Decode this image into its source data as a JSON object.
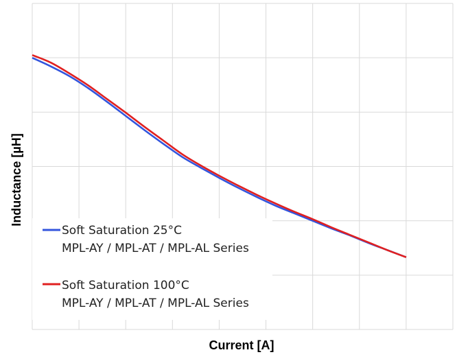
{
  "chart_data": {
    "type": "line",
    "title": "",
    "xlabel": "Current [A]",
    "ylabel": "Inductance [µH]",
    "xlim": [
      0,
      9
    ],
    "ylim": [
      0,
      6
    ],
    "grid": true,
    "legend_position": "bottom-left",
    "x_tick_labels": [],
    "y_tick_labels": [],
    "series": [
      {
        "name": "Soft Saturation 25°C",
        "subtitle": "MPL-AY / MPL-AT / MPL-AL Series",
        "color": "#3355dd",
        "x": [
          0,
          0.4,
          0.8,
          1.2,
          1.6,
          2.0,
          2.4,
          2.8,
          3.2,
          3.6,
          4.0,
          4.4,
          4.8,
          5.2,
          5.6,
          6.0,
          6.4,
          6.8,
          7.2,
          7.6,
          8.0
        ],
        "y": [
          5.0,
          4.84,
          4.66,
          4.44,
          4.19,
          3.93,
          3.67,
          3.42,
          3.18,
          2.98,
          2.79,
          2.61,
          2.44,
          2.28,
          2.14,
          2.0,
          1.86,
          1.73,
          1.59,
          1.46,
          1.33
        ]
      },
      {
        "name": "Soft Saturation 100°C",
        "subtitle": "MPL-AY / MPL-AT / MPL-AL Series",
        "color": "#e02020",
        "x": [
          0,
          0.4,
          0.8,
          1.2,
          1.6,
          2.0,
          2.4,
          2.8,
          3.2,
          3.6,
          4.0,
          4.4,
          4.8,
          5.2,
          5.6,
          6.0,
          6.4,
          6.8,
          7.2,
          7.6,
          8.0
        ],
        "y": [
          5.05,
          4.91,
          4.71,
          4.49,
          4.24,
          3.99,
          3.73,
          3.48,
          3.23,
          3.02,
          2.83,
          2.65,
          2.48,
          2.32,
          2.17,
          2.03,
          1.88,
          1.74,
          1.6,
          1.46,
          1.33
        ]
      }
    ]
  }
}
